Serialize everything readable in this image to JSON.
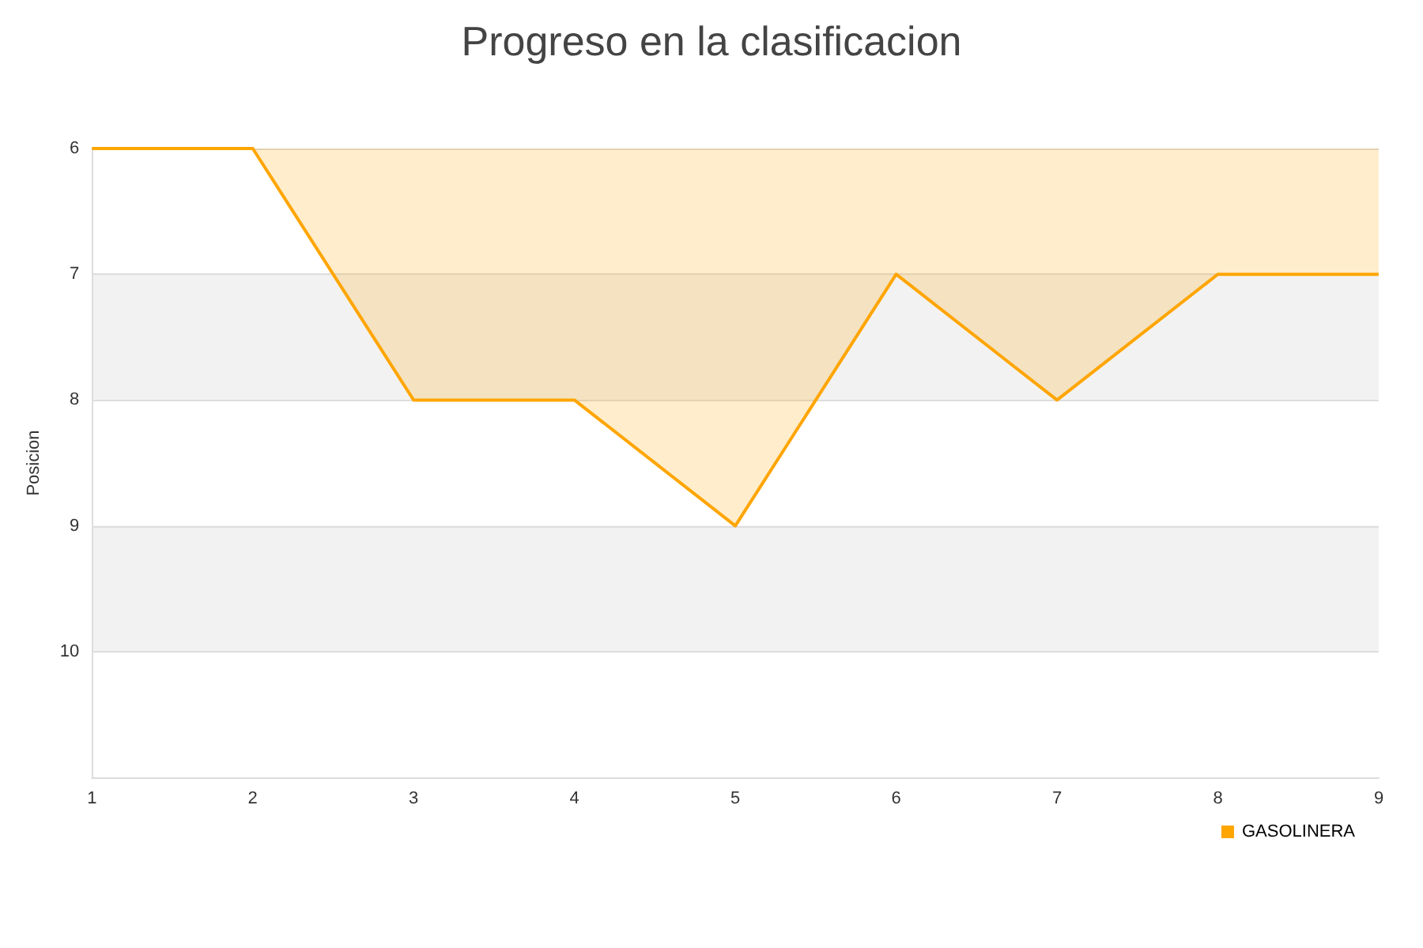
{
  "chart_data": {
    "type": "area",
    "title": "Progreso en la clasificacion",
    "ylabel": "Posicion",
    "x": [
      1,
      2,
      3,
      4,
      5,
      6,
      7,
      8,
      9
    ],
    "series": [
      {
        "name": "GASOLINERA",
        "color": "#ffa500",
        "values": [
          6,
          6,
          8,
          8,
          9,
          7,
          8,
          7,
          7
        ]
      }
    ],
    "xlim": [
      1,
      9
    ],
    "xticks": [
      1,
      2,
      3,
      4,
      5,
      6,
      7,
      8,
      9
    ],
    "ylim": [
      11,
      6
    ],
    "yticks": [
      6,
      7,
      8,
      9,
      10
    ],
    "grid": "y",
    "legend": "bottom right",
    "marker": "none"
  }
}
